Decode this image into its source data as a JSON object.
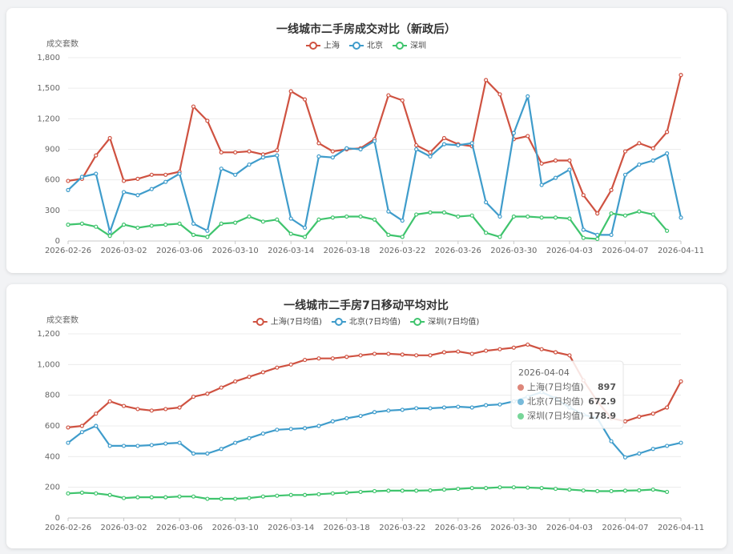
{
  "chart_data": [
    {
      "type": "line",
      "title": "一线城市二手房成交对比（新政后）",
      "y_label": "成交套数",
      "x": [
        "2026-02-26",
        "2026-02-27",
        "2026-02-28",
        "2026-03-01",
        "2026-03-02",
        "2026-03-03",
        "2026-03-04",
        "2026-03-05",
        "2026-03-06",
        "2026-03-07",
        "2026-03-08",
        "2026-03-09",
        "2026-03-10",
        "2026-03-11",
        "2026-03-12",
        "2026-03-13",
        "2026-03-14",
        "2026-03-15",
        "2026-03-16",
        "2026-03-17",
        "2026-03-18",
        "2026-03-19",
        "2026-03-20",
        "2026-03-21",
        "2026-03-22",
        "2026-03-23",
        "2026-03-24",
        "2026-03-25",
        "2026-03-26",
        "2026-03-27",
        "2026-03-28",
        "2026-03-29",
        "2026-03-30",
        "2026-03-31",
        "2026-04-01",
        "2026-04-02",
        "2026-04-03",
        "2026-04-04",
        "2026-04-05",
        "2026-04-06",
        "2026-04-07",
        "2026-04-08",
        "2026-04-09",
        "2026-04-10",
        "2026-04-11"
      ],
      "xtick_interval": 4,
      "ylim": [
        0,
        1800
      ],
      "yticks": [
        0,
        300,
        600,
        900,
        {
          "value": 1200,
          "label": "1,200"
        },
        {
          "value": 1500,
          "label": "1,500"
        },
        {
          "value": 1800,
          "label": "1,800"
        }
      ],
      "grid": true,
      "legend": "top",
      "series": [
        {
          "name": "上海",
          "color": "#cf5241",
          "values": [
            590,
            610,
            840,
            1010,
            590,
            610,
            650,
            650,
            680,
            1320,
            1180,
            870,
            870,
            880,
            850,
            890,
            1470,
            1390,
            960,
            880,
            900,
            910,
            1000,
            1430,
            1380,
            940,
            870,
            1010,
            950,
            930,
            1580,
            1440,
            1000,
            1030,
            760,
            790,
            790,
            450,
            270,
            500,
            880,
            960,
            910,
            1070,
            1630
          ]
        },
        {
          "name": "北京",
          "color": "#3f9ccb",
          "values": [
            500,
            630,
            660,
            90,
            480,
            450,
            510,
            580,
            660,
            170,
            100,
            710,
            650,
            750,
            820,
            840,
            220,
            130,
            830,
            820,
            910,
            900,
            980,
            290,
            200,
            900,
            830,
            950,
            940,
            960,
            380,
            240,
            1060,
            1420,
            550,
            620,
            700,
            110,
            60,
            60,
            650,
            750,
            790,
            860,
            230
          ]
        },
        {
          "name": "深圳",
          "color": "#3fc46d",
          "values": [
            160,
            170,
            140,
            50,
            160,
            130,
            150,
            160,
            170,
            60,
            40,
            170,
            180,
            240,
            190,
            210,
            70,
            40,
            210,
            230,
            240,
            240,
            210,
            60,
            40,
            260,
            280,
            280,
            240,
            250,
            80,
            40,
            240,
            240,
            230,
            230,
            220,
            30,
            20,
            270,
            250,
            290,
            260,
            100,
            null
          ]
        }
      ]
    },
    {
      "type": "line",
      "title": "一线城市二手房7日移动平均对比",
      "y_label": "成交套数",
      "x": [
        "2026-02-26",
        "2026-02-27",
        "2026-02-28",
        "2026-03-01",
        "2026-03-02",
        "2026-03-03",
        "2026-03-04",
        "2026-03-05",
        "2026-03-06",
        "2026-03-07",
        "2026-03-08",
        "2026-03-09",
        "2026-03-10",
        "2026-03-11",
        "2026-03-12",
        "2026-03-13",
        "2026-03-14",
        "2026-03-15",
        "2026-03-16",
        "2026-03-17",
        "2026-03-18",
        "2026-03-19",
        "2026-03-20",
        "2026-03-21",
        "2026-03-22",
        "2026-03-23",
        "2026-03-24",
        "2026-03-25",
        "2026-03-26",
        "2026-03-27",
        "2026-03-28",
        "2026-03-29",
        "2026-03-30",
        "2026-03-31",
        "2026-04-01",
        "2026-04-02",
        "2026-04-03",
        "2026-04-04",
        "2026-04-05",
        "2026-04-06",
        "2026-04-07",
        "2026-04-08",
        "2026-04-09",
        "2026-04-10",
        "2026-04-11"
      ],
      "xtick_interval": 4,
      "ylim": [
        0,
        1200
      ],
      "yticks": [
        0,
        200,
        400,
        600,
        800,
        {
          "value": 1000,
          "label": "1,000"
        },
        {
          "value": 1200,
          "label": "1,200"
        }
      ],
      "grid": true,
      "legend": "top",
      "tooltip": "2026-04-04",
      "series": [
        {
          "name": "上海(7日均值)",
          "color": "#cf5241",
          "values": [
            590,
            600,
            680,
            760,
            730,
            710,
            700,
            710,
            720,
            790,
            810,
            850,
            890,
            920,
            950,
            980,
            1000,
            1030,
            1040,
            1040,
            1050,
            1060,
            1070,
            1070,
            1065,
            1060,
            1060,
            1080,
            1085,
            1070,
            1090,
            1100,
            1110,
            1130,
            1100,
            1080,
            1060,
            897,
            760,
            650,
            630,
            660,
            680,
            720,
            890
          ]
        },
        {
          "name": "北京(7日均值)",
          "color": "#3f9ccb",
          "values": [
            490,
            560,
            600,
            470,
            470,
            470,
            475,
            485,
            490,
            420,
            420,
            450,
            490,
            520,
            550,
            575,
            580,
            585,
            600,
            630,
            650,
            665,
            690,
            700,
            705,
            715,
            715,
            720,
            725,
            720,
            735,
            740,
            760,
            790,
            820,
            780,
            720,
            672.9,
            650,
            500,
            395,
            420,
            450,
            470,
            490
          ]
        },
        {
          "name": "深圳(7日均值)",
          "color": "#3fc46d",
          "values": [
            160,
            165,
            160,
            150,
            130,
            135,
            135,
            135,
            140,
            140,
            125,
            125,
            125,
            130,
            140,
            145,
            150,
            150,
            155,
            160,
            165,
            170,
            175,
            178,
            178,
            178,
            180,
            185,
            190,
            195,
            195,
            200,
            200,
            198,
            195,
            190,
            185,
            178.9,
            175,
            175,
            178,
            180,
            185,
            170,
            null
          ]
        }
      ]
    }
  ]
}
